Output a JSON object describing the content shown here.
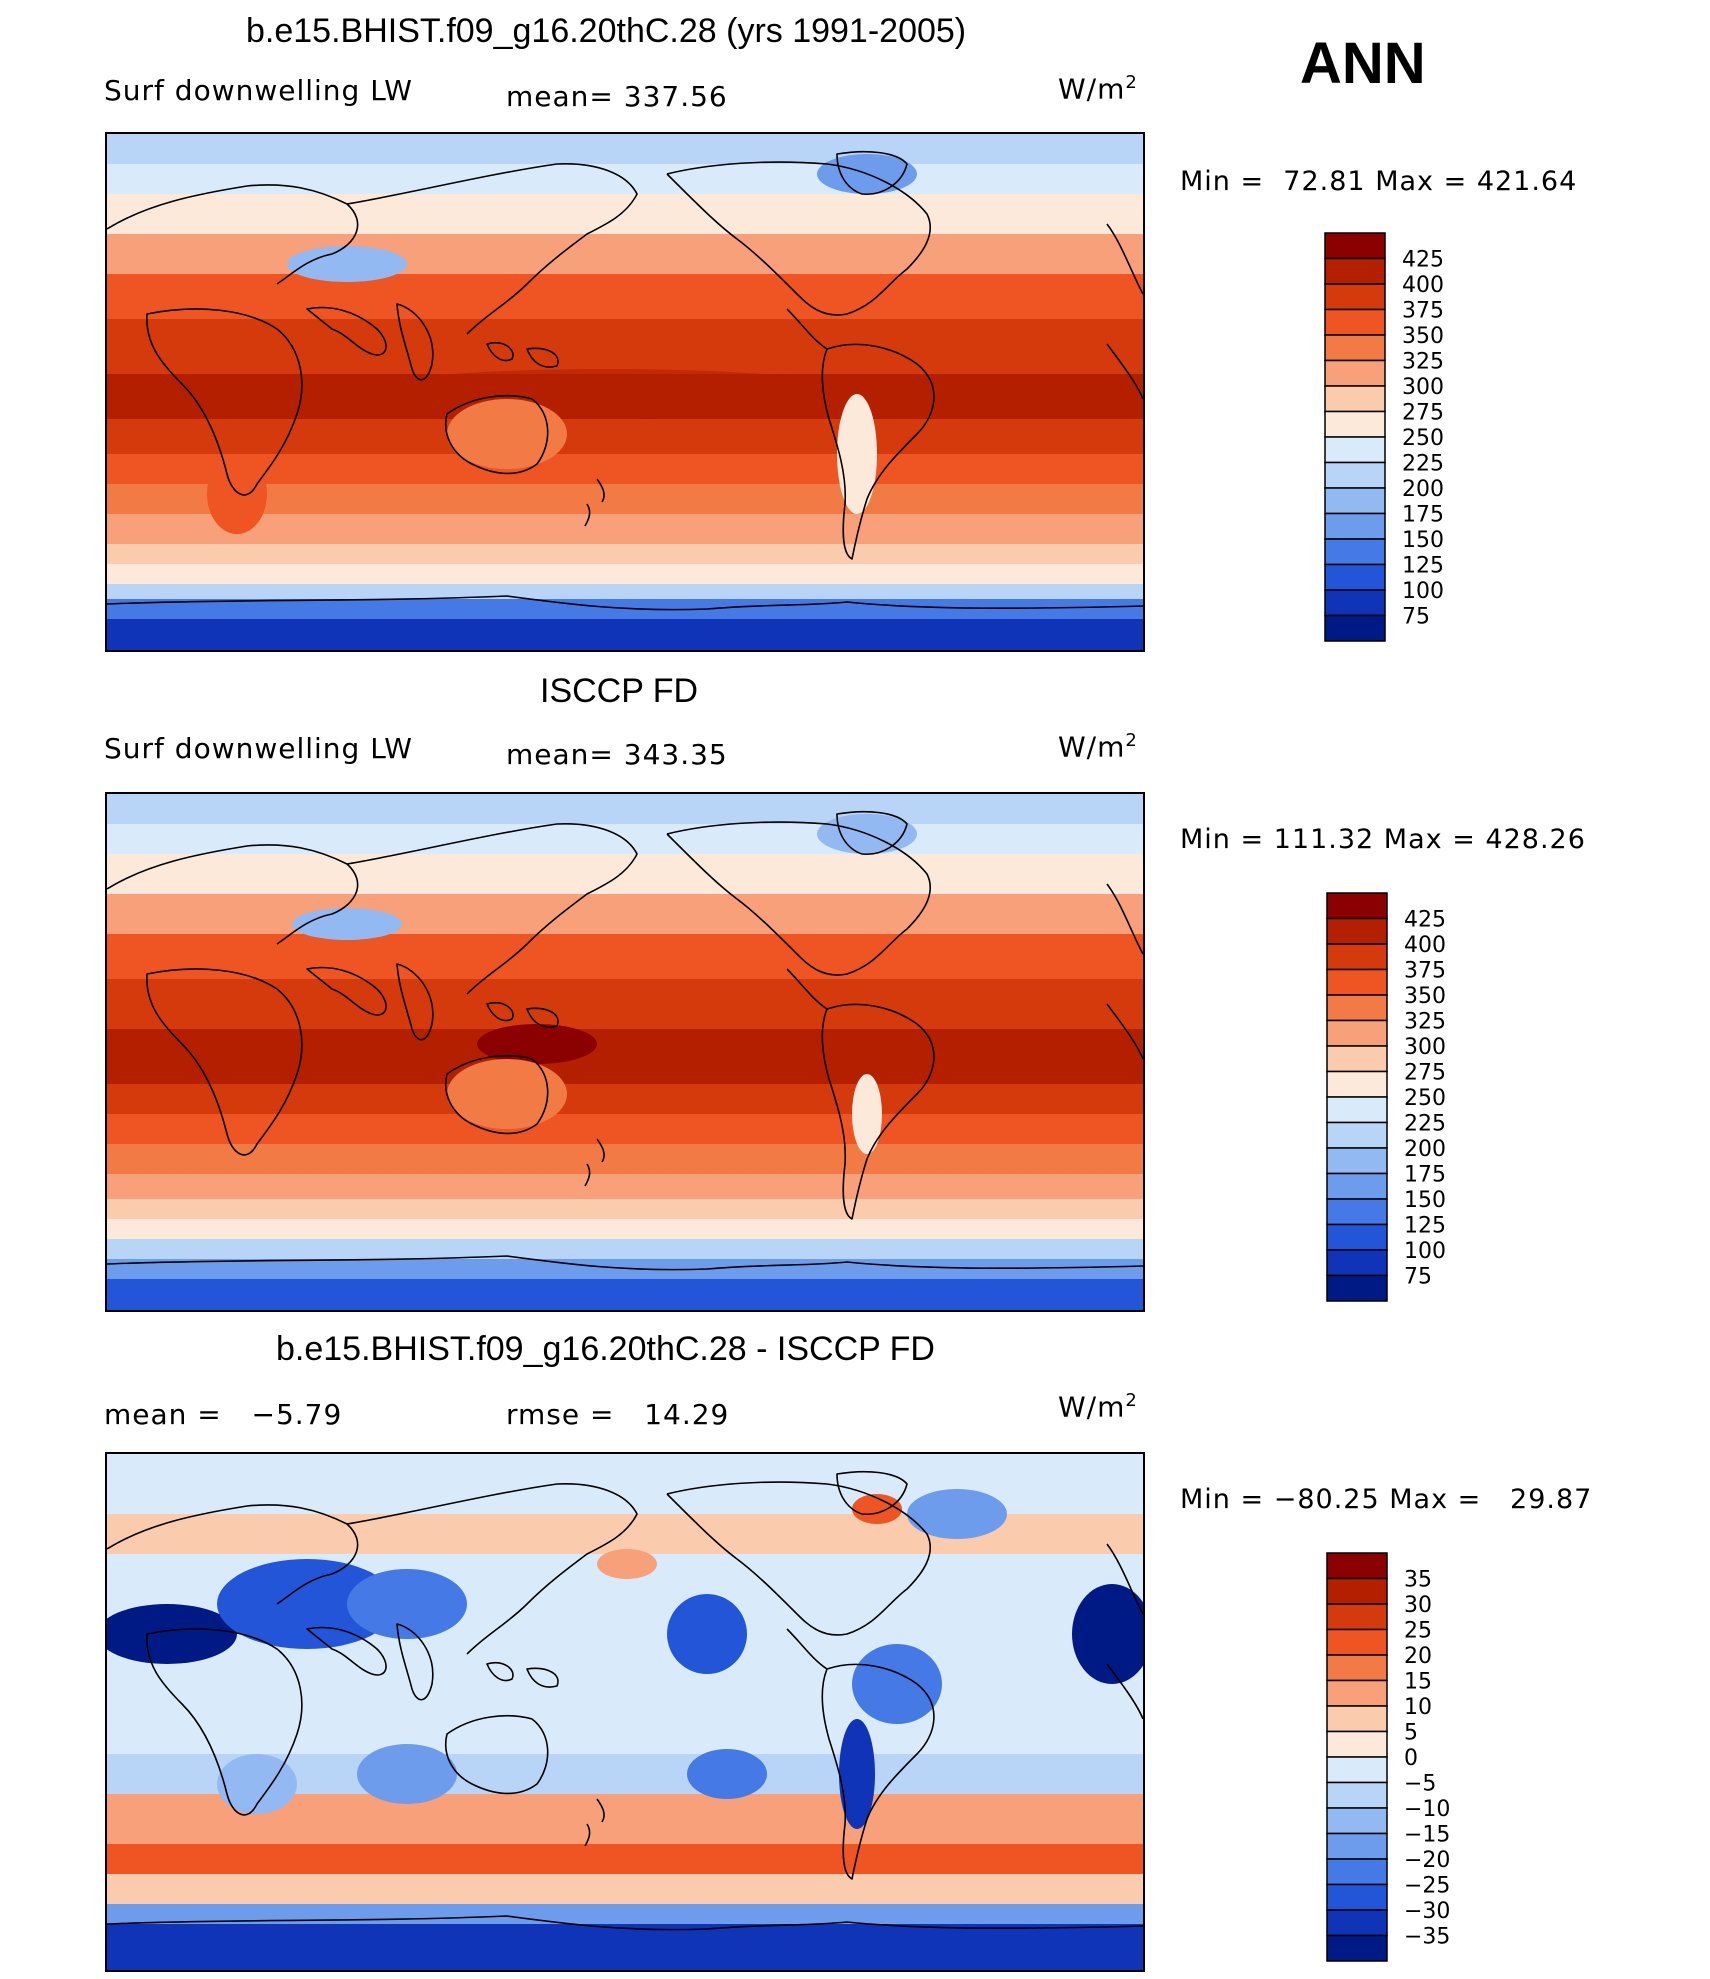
{
  "header": {
    "season": "ANN"
  },
  "panels": [
    {
      "id": "model",
      "title": "b.e15.BHIST.f09_g16.20thC.28 (yrs 1991-2005)",
      "left_label": "Surf downwelling LW",
      "center_label": "mean= 337.56",
      "units_base": "W/m",
      "units_exp": "2",
      "min_label": "Min =",
      "min_value": "72.81",
      "max_label": "Max =",
      "max_value": "421.64",
      "colorbar": {
        "labels": [
          "425",
          "400",
          "375",
          "350",
          "325",
          "300",
          "275",
          "250",
          "225",
          "200",
          "175",
          "150",
          "125",
          "100",
          "75"
        ],
        "colors": [
          "#8b0000",
          "#b41f00",
          "#d43a0c",
          "#ee5522",
          "#f27b45",
          "#f7a07a",
          "#fbcbae",
          "#fde9d9",
          "#d9ebfb",
          "#b8d5f7",
          "#93b9f2",
          "#6d9cec",
          "#4479e6",
          "#2355d8",
          "#0f34b8",
          "#001a85"
        ]
      },
      "map_style": "absolute_a"
    },
    {
      "id": "obs",
      "title": "ISCCP FD",
      "left_label": "Surf downwelling LW",
      "center_label": "mean= 343.35",
      "units_base": "W/m",
      "units_exp": "2",
      "min_label": "Min =",
      "min_value": "111.32",
      "max_label": "Max =",
      "max_value": "428.26",
      "colorbar": {
        "labels": [
          "425",
          "400",
          "375",
          "350",
          "325",
          "300",
          "275",
          "250",
          "225",
          "200",
          "175",
          "150",
          "125",
          "100",
          "75"
        ],
        "colors": [
          "#8b0000",
          "#b41f00",
          "#d43a0c",
          "#ee5522",
          "#f27b45",
          "#f7a07a",
          "#fbcbae",
          "#fde9d9",
          "#d9ebfb",
          "#b8d5f7",
          "#93b9f2",
          "#6d9cec",
          "#4479e6",
          "#2355d8",
          "#0f34b8",
          "#001a85"
        ]
      },
      "map_style": "absolute_b"
    },
    {
      "id": "diff",
      "title": "b.e15.BHIST.f09_g16.20thC.28 - ISCCP FD",
      "left_label": "mean =",
      "left_value": "−5.79",
      "center_label": "rmse =",
      "center_value": "14.29",
      "units_base": "W/m",
      "units_exp": "2",
      "min_label": "Min =",
      "min_value": "−80.25",
      "max_label": "Max =",
      "max_value": "29.87",
      "colorbar": {
        "labels": [
          "35",
          "30",
          "25",
          "20",
          "15",
          "10",
          "5",
          "0",
          "−5",
          "−10",
          "−15",
          "−20",
          "−25",
          "−30",
          "−35"
        ],
        "colors": [
          "#8b0000",
          "#b41f00",
          "#d43a0c",
          "#ee5522",
          "#f27b45",
          "#f7a07a",
          "#fbcbae",
          "#fde9d9",
          "#d9ebfb",
          "#b8d5f7",
          "#93b9f2",
          "#6d9cec",
          "#4479e6",
          "#2355d8",
          "#0f34b8",
          "#001a85"
        ]
      },
      "map_style": "difference"
    }
  ]
}
